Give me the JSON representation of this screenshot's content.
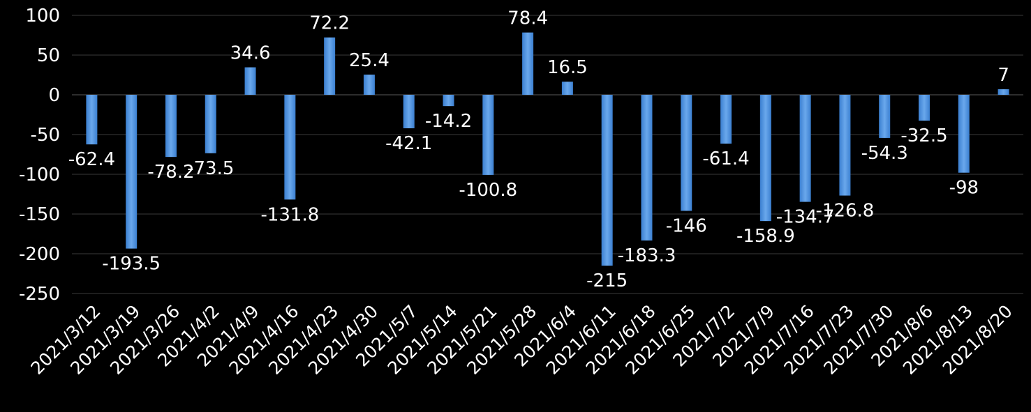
{
  "chart_data": {
    "type": "bar",
    "title": "",
    "xlabel": "",
    "ylabel": "",
    "ylim": [
      -250,
      100
    ],
    "yticks": [
      100,
      50,
      0,
      -50,
      -100,
      -150,
      -200,
      -250
    ],
    "grid": true,
    "legend": "none",
    "categories": [
      "2021/3/12",
      "2021/3/19",
      "2021/3/26",
      "2021/4/2",
      "2021/4/9",
      "2021/4/16",
      "2021/4/23",
      "2021/4/30",
      "2021/5/7",
      "2021/5/14",
      "2021/5/21",
      "2021/5/28",
      "2021/6/4",
      "2021/6/11",
      "2021/6/18",
      "2021/6/25",
      "2021/7/2",
      "2021/7/9",
      "2021/7/16",
      "2021/7/23",
      "2021/7/30",
      "2021/8/6",
      "2021/8/13",
      "2021/8/20"
    ],
    "values": [
      -62.4,
      -193.5,
      -78.2,
      -73.5,
      34.6,
      -131.8,
      72.2,
      25.4,
      -42.1,
      -14.2,
      -100.8,
      78.4,
      16.5,
      -215,
      -183.3,
      -146,
      -61.4,
      -158.9,
      -134.7,
      -126.8,
      -54.3,
      -32.5,
      -98,
      7
    ],
    "data_labels": [
      "-62.4",
      "-193.5",
      "-78.2",
      "-73.5",
      "34.6",
      "-131.8",
      "72.2",
      "25.4",
      "-42.1",
      "-14.2",
      "-100.8",
      "78.4",
      "16.5",
      "-215",
      "-183.3",
      "-146",
      "-61.4",
      "-158.9",
      "-134.7",
      "-126.8",
      "-54.3",
      "-32.5",
      "-98",
      "7"
    ],
    "colors": {
      "background": "#000000",
      "bar": "#4a90d9",
      "bar_light": "#7fb3ea",
      "grid": "#3a3a3a",
      "text": "#ffffff"
    }
  }
}
